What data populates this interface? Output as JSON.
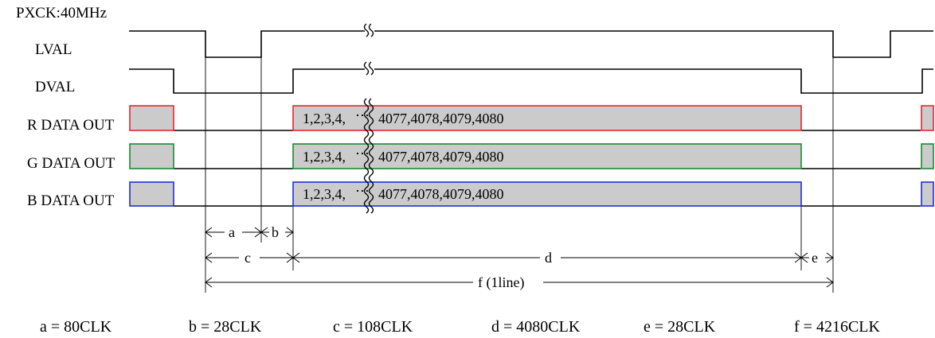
{
  "clock_label": "PXCK:40MHz",
  "signals": {
    "lval": {
      "label": "LVAL"
    },
    "dval": {
      "label": "DVAL"
    },
    "r": {
      "label": "R DATA OUT",
      "data": "1,2,3,4,",
      "data_tail": "4077,4078,4079,4080",
      "color": "#e8262a"
    },
    "g": {
      "label": "G DATA OUT",
      "data": "1,2,3,4,",
      "data_tail": "4077,4078,4079,4080",
      "color": "#1b8a2e"
    },
    "b": {
      "label": "B DATA OUT",
      "data": "1,2,3,4,",
      "data_tail": "4077,4078,4079,4080",
      "color": "#1f2fd6"
    }
  },
  "data_fill": "#cbcbcb",
  "ellipsis": "⋯",
  "dimensions": {
    "a": "a",
    "b": "b",
    "c": "c",
    "d": "d",
    "e": "e",
    "f": "f (1line)"
  },
  "legend": {
    "a": "a = 80CLK",
    "b": "b = 28CLK",
    "c": "c = 108CLK",
    "d": "d = 4080CLK",
    "e": "e = 28CLK",
    "f": "f = 4216CLK"
  }
}
